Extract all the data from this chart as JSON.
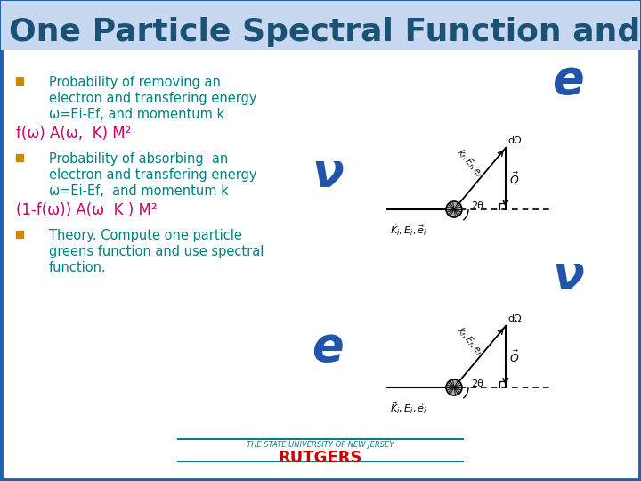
{
  "title": "One Particle Spectral Function and A",
  "title_color": "#1a5276",
  "title_fontsize": 26,
  "background_color": "#ffffff",
  "border_color": "#2060b0",
  "bullet_color": "#cc8800",
  "text_color_teal": "#008080",
  "formula1_color": "#cc0066",
  "formula2_color": "#cc0066",
  "rutgers_color": "#cc0000",
  "bullet1_lines": [
    "Probability of removing an",
    "electron and transfering energy",
    "ω=Ei-Ef, and momentum k"
  ],
  "formula1": "f(ω) A(ω,  K) M²",
  "bullet2_lines": [
    "Probability of absorbing  an",
    "electron and transfering energy",
    "ω=Ei-Ef,  and momentum k"
  ],
  "formula2": "(1-f(ω)) A(ω  K ) M²",
  "bullet3_lines": [
    "Theory. Compute one particle",
    "greens function and use spectral",
    "function."
  ],
  "nu_color": "#2255aa",
  "e_color": "#2255aa",
  "footer_text": "THE STATE UNIVERSITY OF NEW JERSEY",
  "footer_rutgers": "RUTGERS",
  "title_bg": "#c8d8f0"
}
